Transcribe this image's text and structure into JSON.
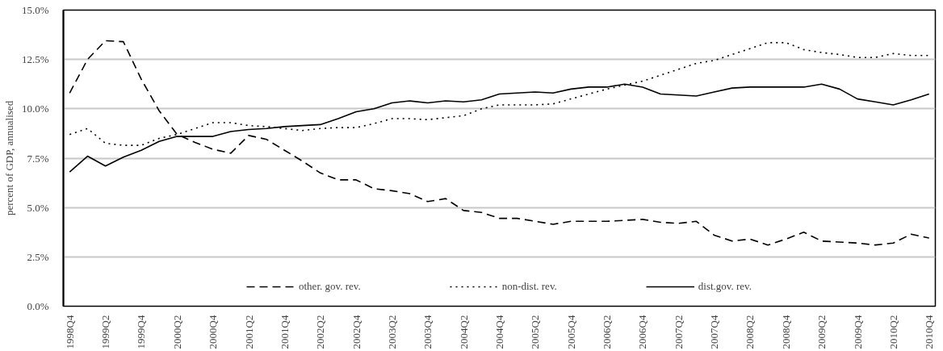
{
  "chart_data": {
    "type": "line",
    "ylabel": "percent of GDP, annualised",
    "categories": [
      "1998Q4",
      null,
      "1999Q2",
      null,
      "1999Q4",
      null,
      "2000Q2",
      null,
      "2000Q4",
      null,
      "2001Q2",
      null,
      "2001Q4",
      null,
      "2002Q2",
      null,
      "2002Q4",
      null,
      "2003Q2",
      null,
      "2003Q4",
      null,
      "2004Q2",
      null,
      "2004Q4",
      null,
      "2005Q2",
      null,
      "2005Q4",
      null,
      "2006Q2",
      null,
      "2006Q4",
      null,
      "2007Q2",
      null,
      "2007Q4",
      null,
      "2008Q2",
      null,
      "2008Q4",
      null,
      "2009Q2",
      null,
      "2009Q4",
      null,
      "2010Q2",
      null,
      "2010Q4"
    ],
    "ylim": [
      0,
      15
    ],
    "yticks": [
      {
        "value": 0,
        "label": "0.0%"
      },
      {
        "value": 2.5,
        "label": "2.5%"
      },
      {
        "value": 5,
        "label": "5.0%"
      },
      {
        "value": 7.5,
        "label": "7.5%"
      },
      {
        "value": 10,
        "label": "10.0%"
      },
      {
        "value": 12.5,
        "label": "12.5%"
      },
      {
        "value": 15,
        "label": "15.0%"
      }
    ],
    "grid": "y",
    "legend": "bottom",
    "series": [
      {
        "name": "other. gov. rev.",
        "color": "#000000",
        "line_style": "dashed",
        "values": [
          10.8,
          12.5,
          13.45,
          13.4,
          11.5,
          9.9,
          8.7,
          8.3,
          7.95,
          7.75,
          8.65,
          8.45,
          7.9,
          7.35,
          6.75,
          6.4,
          6.4,
          5.95,
          5.85,
          5.7,
          5.3,
          5.45,
          4.85,
          4.75,
          4.45,
          4.45,
          4.3,
          4.15,
          4.3,
          4.3,
          4.3,
          4.35,
          4.4,
          4.25,
          4.2,
          4.3,
          3.6,
          3.3,
          3.4,
          3.1,
          3.4,
          3.75,
          3.3,
          3.25,
          3.2,
          3.1,
          3.2,
          3.65,
          3.45
        ]
      },
      {
        "name": "non-dist. rev.",
        "color": "#000000",
        "line_style": "dotted",
        "values": [
          8.7,
          9.0,
          8.25,
          8.15,
          8.15,
          8.5,
          8.7,
          9.0,
          9.3,
          9.3,
          9.15,
          9.1,
          9.0,
          8.9,
          9.0,
          9.05,
          9.05,
          9.25,
          9.5,
          9.5,
          9.45,
          9.55,
          9.65,
          10.0,
          10.2,
          10.2,
          10.2,
          10.25,
          10.5,
          10.75,
          11.0,
          11.2,
          11.4,
          11.7,
          12.0,
          12.3,
          12.45,
          12.75,
          13.05,
          13.35,
          13.35,
          13.0,
          12.85,
          12.75,
          12.6,
          12.6,
          12.8,
          12.7,
          12.7
        ]
      },
      {
        "name": "dist.gov. rev.",
        "color": "#000000",
        "line_style": "solid",
        "values": [
          6.8,
          7.6,
          7.1,
          7.55,
          7.9,
          8.35,
          8.6,
          8.6,
          8.6,
          8.85,
          8.95,
          9.0,
          9.1,
          9.15,
          9.2,
          9.5,
          9.85,
          10.0,
          10.3,
          10.4,
          10.3,
          10.4,
          10.35,
          10.45,
          10.75,
          10.8,
          10.85,
          10.8,
          11.0,
          11.1,
          11.1,
          11.25,
          11.1,
          10.75,
          10.7,
          10.65,
          10.85,
          11.05,
          11.1,
          11.1,
          11.1,
          11.1,
          11.25,
          11.0,
          10.5,
          10.35,
          10.2,
          10.45,
          10.75
        ]
      }
    ]
  }
}
